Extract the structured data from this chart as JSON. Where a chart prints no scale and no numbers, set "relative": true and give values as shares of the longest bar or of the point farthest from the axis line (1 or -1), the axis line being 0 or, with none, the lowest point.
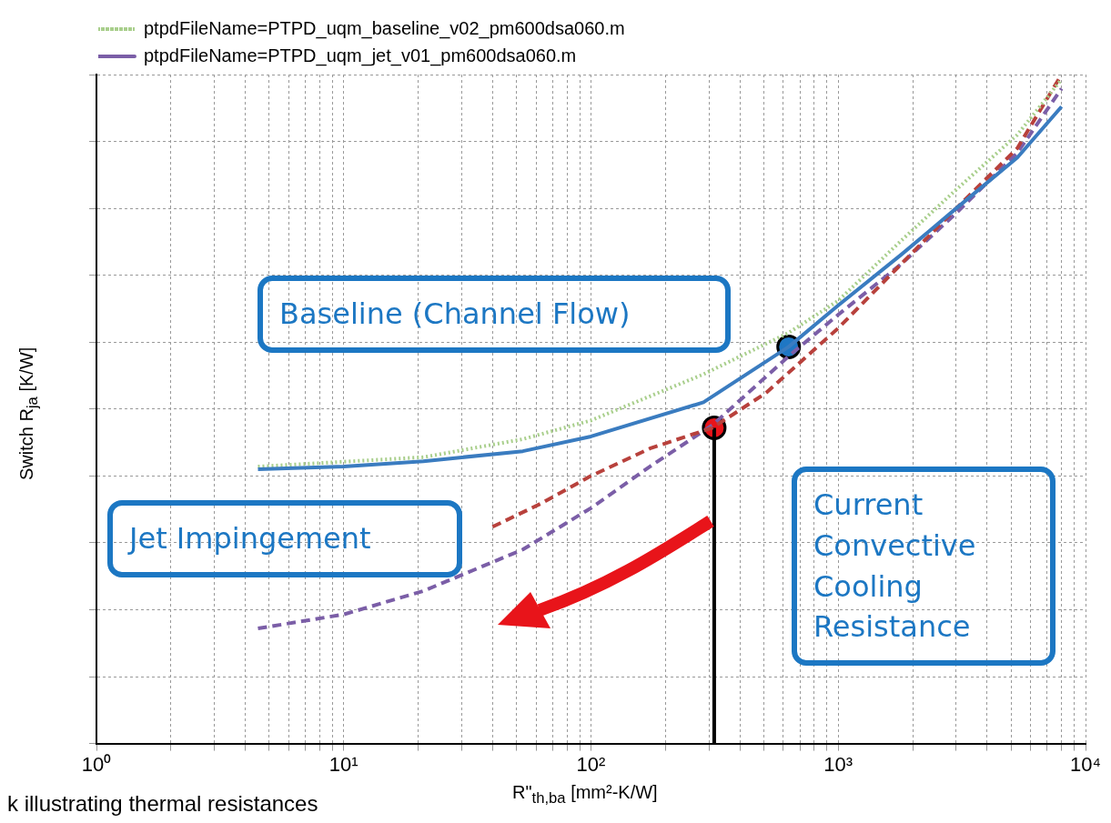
{
  "chart_data": {
    "type": "line",
    "xlabel": "R\"$_{th,ba}$ [mm²-K/W]",
    "ylabel": "Switch R$_{ja}$ [K/W]",
    "relative": true,
    "log": "x",
    "grid": true,
    "legend": "top left",
    "marker": "none",
    "xlim": [
      1,
      10000
    ],
    "xticks": [
      {
        "value": 1,
        "label": "10⁰"
      },
      {
        "value": 2,
        "label": null
      },
      {
        "value": 3,
        "label": null
      },
      {
        "value": 4,
        "label": null
      },
      {
        "value": 5,
        "label": null
      },
      {
        "value": 6,
        "label": null
      },
      {
        "value": 7,
        "label": null
      },
      {
        "value": 8,
        "label": null
      },
      {
        "value": 9,
        "label": null
      },
      {
        "value": 10,
        "label": "10¹"
      },
      {
        "value": 20,
        "label": null
      },
      {
        "value": 30,
        "label": null
      },
      {
        "value": 40,
        "label": null
      },
      {
        "value": 50,
        "label": null
      },
      {
        "value": 60,
        "label": null
      },
      {
        "value": 70,
        "label": null
      },
      {
        "value": 80,
        "label": null
      },
      {
        "value": 90,
        "label": null
      },
      {
        "value": 100,
        "label": "10²"
      },
      {
        "value": 200,
        "label": null
      },
      {
        "value": 300,
        "label": null
      },
      {
        "value": 400,
        "label": null
      },
      {
        "value": 500,
        "label": null
      },
      {
        "value": 600,
        "label": null
      },
      {
        "value": 700,
        "label": null
      },
      {
        "value": 800,
        "label": null
      },
      {
        "value": 900,
        "label": null
      },
      {
        "value": 1000,
        "label": "10³"
      },
      {
        "value": 2000,
        "label": null
      },
      {
        "value": 3000,
        "label": null
      },
      {
        "value": 4000,
        "label": null
      },
      {
        "value": 5000,
        "label": null
      },
      {
        "value": 6000,
        "label": null
      },
      {
        "value": 7000,
        "label": null
      },
      {
        "value": 8000,
        "label": null
      },
      {
        "value": 9000,
        "label": null
      },
      {
        "value": 10000,
        "label": "10⁴"
      }
    ],
    "series": [
      {
        "color": "#3a7cc0",
        "line_style": "solid",
        "x": [
          4.5,
          10,
          21,
          53,
          100,
          285,
          630,
          1000,
          1800,
          3000,
          5300,
          8000
        ],
        "values": [
          0.41,
          0.414,
          0.422,
          0.437,
          0.459,
          0.51,
          0.593,
          0.655,
          0.731,
          0.8,
          0.876,
          0.952
        ]
      },
      {
        "name": "ptpdFileName=PTPD_uqm_baseline_v02_pm600dsa060.m",
        "color": "#a9cf8c",
        "line_style": "dotted",
        "x": [
          4.5,
          21,
          53,
          100,
          285,
          630,
          1000,
          1800,
          3000,
          5300,
          8000
        ],
        "values": [
          0.414,
          0.428,
          0.455,
          0.483,
          0.552,
          0.614,
          0.662,
          0.752,
          0.828,
          0.91,
          0.993
        ]
      },
      {
        "color": "#b8413c",
        "line_style": "dashed",
        "x": [
          40,
          63,
          100,
          173,
          310,
          510,
          1000,
          1800,
          3000,
          5300,
          8000
        ],
        "values": [
          0.324,
          0.359,
          0.4,
          0.441,
          0.472,
          0.524,
          0.621,
          0.717,
          0.8,
          0.89,
          1.0
        ]
      },
      {
        "name": "ptpdFileName=PTPD_uqm_jet_v01_pm600dsa060.m",
        "color": "#7b5ea7",
        "line_style": "dashed",
        "x": [
          4.5,
          10,
          21,
          53,
          100,
          173,
          310,
          630,
          1000,
          1800,
          3000,
          5300,
          8000
        ],
        "values": [
          0.172,
          0.193,
          0.228,
          0.29,
          0.352,
          0.414,
          0.476,
          0.579,
          0.641,
          0.717,
          0.793,
          0.883,
          0.979
        ]
      },
      {
        "type": "line",
        "color": "#000000",
        "line_style": "solid",
        "x": [
          315,
          315
        ],
        "values": [
          0,
          0.472
        ]
      },
      {
        "type": "scatter",
        "marker": "circle",
        "x": [
          630,
          315
        ],
        "values": [
          0.593,
          0.472
        ],
        "colors": [
          "#1f77c4",
          "#e8141a"
        ]
      }
    ],
    "annotations": [
      "Baseline (Channel Flow)",
      "Jet Impingement",
      "Current Convective Cooling Resistance",
      "k illustrating thermal resistances"
    ]
  }
}
